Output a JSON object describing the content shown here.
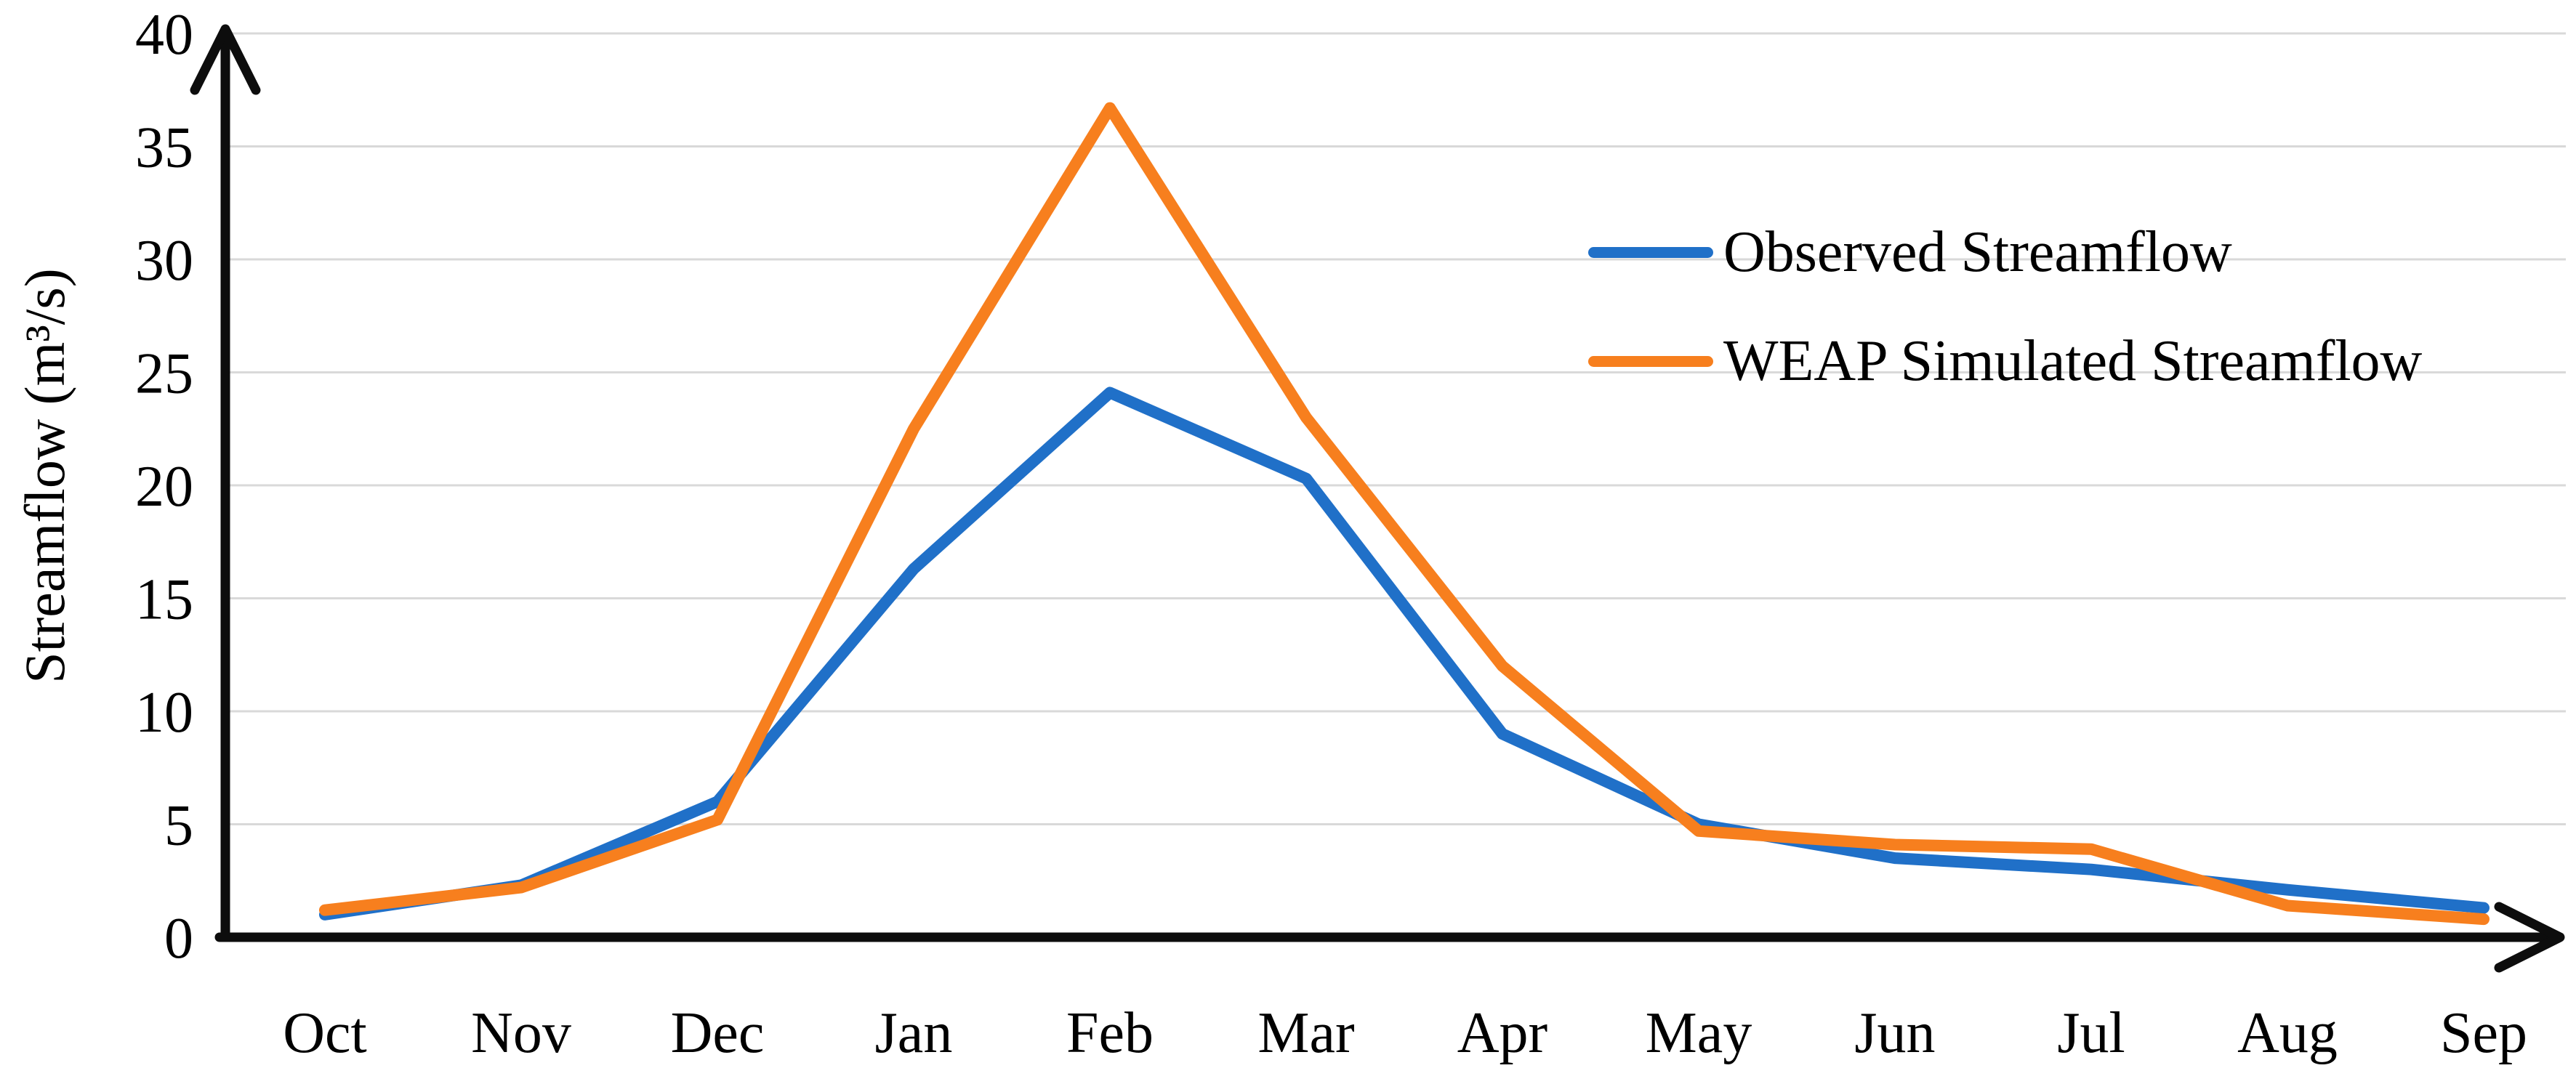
{
  "figure": {
    "background": "#ffffff",
    "text_color": "#000000"
  },
  "chart_data": {
    "type": "line",
    "title": "",
    "xlabel": "",
    "ylabel": "Streamflow (m³/s)",
    "categories": [
      "Oct",
      "Nov",
      "Dec",
      "Jan",
      "Feb",
      "Mar",
      "Apr",
      "May",
      "Jun",
      "Jul",
      "Aug",
      "Sep"
    ],
    "series": [
      {
        "name": "Observed Streamflow",
        "color": "#2070C8",
        "values": [
          1.0,
          2.3,
          6.0,
          16.3,
          24.1,
          20.3,
          9.0,
          5.0,
          3.5,
          3.0,
          2.1,
          1.3
        ]
      },
      {
        "name": "WEAP Simulated Streamflow",
        "color": "#F77F1E",
        "values": [
          1.2,
          2.2,
          5.2,
          22.5,
          36.7,
          23.0,
          12.0,
          4.7,
          4.1,
          3.9,
          1.4,
          0.8
        ]
      }
    ],
    "ylim": [
      0,
      40
    ],
    "y_ticks": [
      0,
      5,
      10,
      15,
      20,
      25,
      30,
      35,
      40
    ],
    "grid": "horizontal",
    "gridline_color": "#D9D9D9",
    "axis_color": "#0d0d0d",
    "legend_position": "inside-upper-right"
  }
}
